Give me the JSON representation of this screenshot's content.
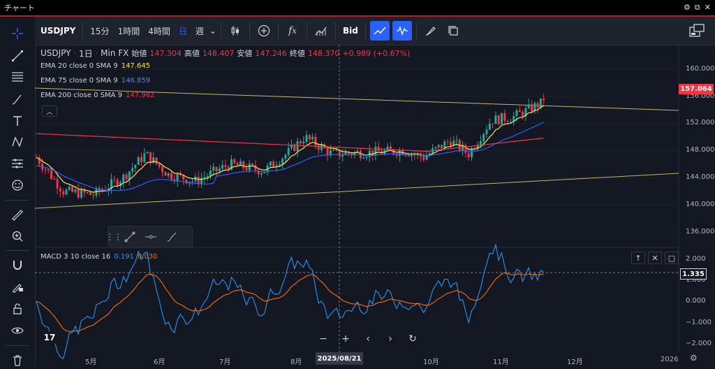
{
  "window": {
    "title": "チャート",
    "btn_settings": "⚙",
    "btn_popout": "⧉",
    "btn_close": "✕"
  },
  "toolbar": {
    "symbol": "USDJPY",
    "intervals": [
      "15分",
      "1時間",
      "4時間",
      "日",
      "週"
    ],
    "active_interval": "日",
    "bid_label": "Bid"
  },
  "legend": {
    "symbol": "USDJPY",
    "timeframe": "1日",
    "source": "Min FX",
    "open_label": "始値",
    "open": "147.304",
    "high_label": "高値",
    "high": "148.407",
    "low_label": "安値",
    "low": "147.246",
    "close_label": "終値",
    "close": "148.370",
    "change": "+0.989 (+0.67%)",
    "emas": [
      {
        "label": "EMA 20 close 0 SMA 9",
        "value": "147.645",
        "color": "#f5e642"
      },
      {
        "label": "EMA 75 close 0 SMA 9",
        "value": "146.859",
        "color": "#2962ff"
      },
      {
        "label": "EMA 200 close 0 SMA 9",
        "value": "147.962",
        "color": "#f23645"
      }
    ]
  },
  "price_axis": {
    "ticks": [
      "160.000",
      "156.000",
      "152.000",
      "148.000",
      "144.000",
      "140.000",
      "136.000"
    ],
    "current": "157.064"
  },
  "macd": {
    "label": "MACD 3 10 close 16",
    "macd_value": "0.191",
    "signal_value": "0.030",
    "ticks": [
      "2.000",
      "1.000",
      "0.000",
      "−1.000",
      "−2.000"
    ],
    "current": "1.335"
  },
  "time_axis": {
    "labels": [
      "5月",
      "6月",
      "7月",
      "8月",
      "10月",
      "11月",
      "12月",
      "2026"
    ],
    "crosshair_date": "2025/08/21"
  },
  "colors": {
    "background": "#131722",
    "up": "#26a69a",
    "down": "#f23645",
    "ema20": "#f5e642",
    "ema75": "#2962ff",
    "ema200": "#f23645",
    "macd": "#2196f3",
    "signal": "#ff6d00",
    "trendline": "#c8b560"
  }
}
